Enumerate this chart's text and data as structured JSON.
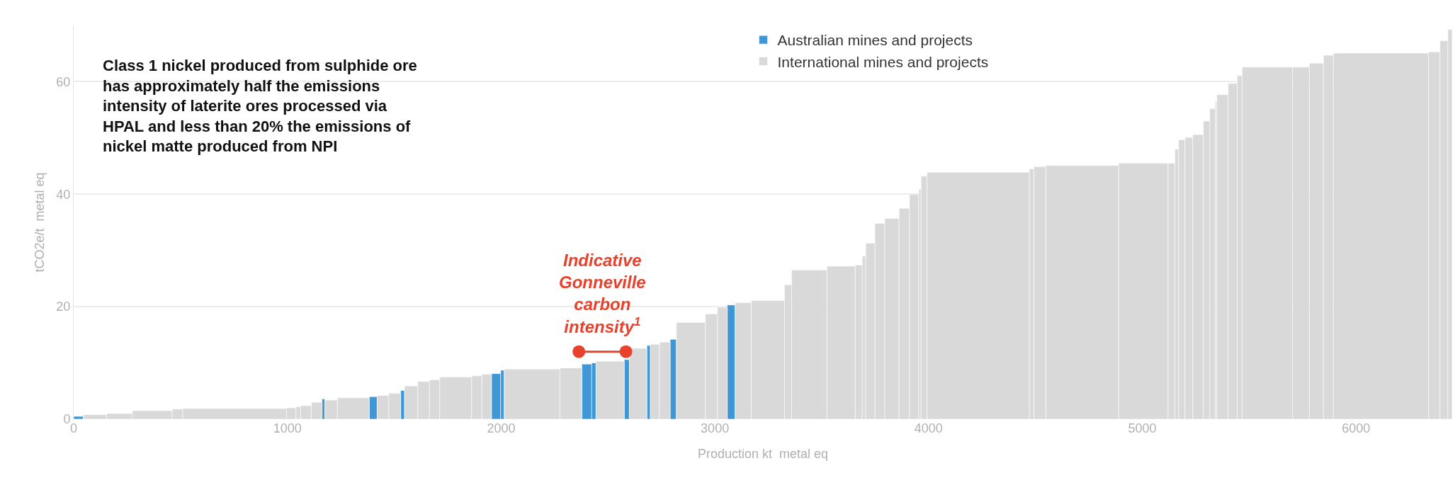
{
  "chart_data": {
    "type": "bar",
    "xlabel": "Production kt  metal eq",
    "ylabel": "tCO2e/t  metal eq",
    "xlim": [
      0,
      6450
    ],
    "xticks": [
      0,
      1000,
      2000,
      3000,
      4000,
      5000,
      6000
    ],
    "ylim": [
      0,
      70
    ],
    "yticks": [
      0,
      20,
      40,
      60
    ],
    "grid": "y",
    "legend": "top",
    "annotations": [
      "Class 1 nickel produced from sulphide ore\nhas approximately half the emissions\nintensity of laterite ores processed via\nHPAL and less than 20% the emissions of\nnickel matte produced from NPI",
      {
        "text": "Indicative\nGonneville\ncarbon\nintensity$^{1}$",
        "x": 2474,
        "y": 12
      }
    ],
    "series": [
      {
        "name": "Australian mines and projects",
        "color": "#3f97d6",
        "x": [
          22.5,
          1168.5,
          1401.5,
          1539,
          1976.5,
          2006,
          2401,
          2434,
          2588,
          2690,
          2805.5,
          3076.5
        ],
        "values": [
          0.5,
          3.6,
          4.0,
          5.1,
          8.1,
          8.7,
          9.8,
          10.0,
          10.6,
          13.1,
          14.2,
          20.3
        ]
      },
      {
        "name": "International mines and projects",
        "color": "#d9d9d9",
        "x": [
          99.5,
          214.5,
          368,
          485.5,
          753,
          1018,
          1051,
          1087,
          1137,
          1204.5,
          1308.5,
          1447,
          1502,
          1579,
          1637.5,
          1689,
          1787.5,
          1886,
          1932.5,
          2144.5,
          2326.5,
          2510,
          2641,
          2719.5,
          2766,
          2888,
          2984,
          3035,
          3133,
          3248.5,
          3342.5,
          3442,
          3591,
          3673.5,
          3698,
          3727.5,
          3772,
          3828.5,
          3886.5,
          3932.5,
          3959.5,
          3979,
          4232.5,
          4482.5,
          4521,
          4719.5,
          5005.5,
          5137,
          5161.5,
          5185,
          5218,
          5261,
          5301,
          5329,
          5345.5,
          5375.5,
          5423,
          5455.5,
          5585,
          5742.5,
          5815,
          5871,
          6117,
          6366.5,
          6411.5,
          6440
        ],
        "values": [
          0.8,
          1.0,
          1.5,
          1.8,
          1.9,
          2.0,
          2.2,
          2.4,
          3.0,
          3.4,
          3.8,
          4.2,
          4.6,
          5.9,
          6.7,
          7.0,
          7.5,
          7.7,
          8.0,
          8.9,
          9.1,
          10.3,
          12.6,
          13.3,
          13.7,
          17.2,
          18.7,
          19.9,
          20.7,
          21.1,
          23.9,
          26.5,
          27.2,
          27.4,
          29.0,
          31.3,
          34.8,
          35.7,
          37.5,
          40.0,
          40.9,
          43.2,
          43.9,
          44.5,
          44.9,
          45.1,
          45.5,
          45.5,
          48.0,
          49.7,
          50.1,
          50.6,
          53.0,
          55.2,
          56.5,
          57.7,
          59.7,
          61.1,
          62.6,
          62.6,
          63.3,
          64.7,
          65.1,
          65.3,
          67.3,
          69.3
        ]
      },
      {
        "type": "line",
        "color": "#e8412c",
        "marker": "circle",
        "line_style": "solid",
        "x": [
          2364,
          2584
        ],
        "values": [
          12,
          12
        ]
      }
    ]
  }
}
